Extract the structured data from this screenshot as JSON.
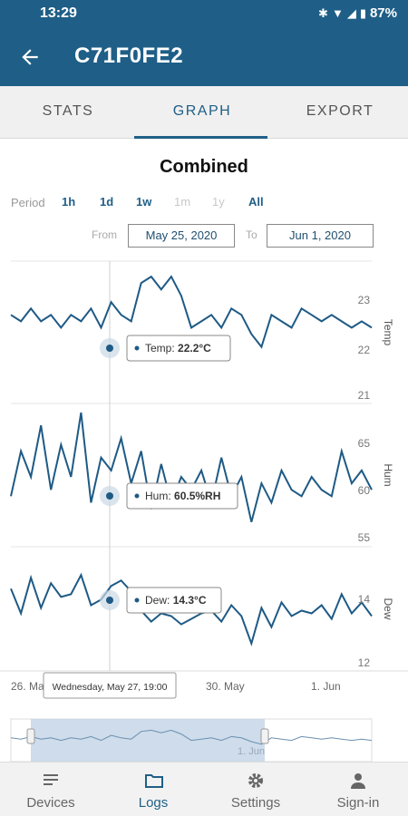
{
  "status_bar": {
    "time": "13:29",
    "battery": "87%"
  },
  "app_bar": {
    "title": "C71F0FE2",
    "back_icon": "arrow-left-icon"
  },
  "tabs": [
    {
      "label": "STATS",
      "active": false
    },
    {
      "label": "GRAPH",
      "active": true
    },
    {
      "label": "EXPORT",
      "active": false
    }
  ],
  "chart_title": "Combined",
  "period": {
    "label": "Period",
    "options": [
      {
        "label": "1h",
        "enabled": true
      },
      {
        "label": "1d",
        "enabled": true
      },
      {
        "label": "1w",
        "enabled": true
      },
      {
        "label": "1m",
        "enabled": false
      },
      {
        "label": "1y",
        "enabled": false
      },
      {
        "label": "All",
        "enabled": true
      }
    ]
  },
  "range": {
    "from_label": "From",
    "from": "May 25, 2020",
    "to_label": "To",
    "to": "Jun 1, 2020"
  },
  "colors": {
    "accent": "#1f5f87",
    "line": "#1e5a85"
  },
  "chart_data": {
    "type": "line",
    "x_ticks": [
      "26. May",
      "30. May",
      "1. Jun"
    ],
    "tooltip_time": "Wednesday, May 27, 19:00",
    "panels": [
      {
        "axis_title": "Temp",
        "ticks": [
          "23",
          "22",
          "21"
        ],
        "ylim": [
          21,
          23
        ],
        "tooltip": {
          "label": "Temp:",
          "value": "22.2°C"
        },
        "x": [
          0,
          0.2,
          0.4,
          0.6,
          0.8,
          1.0,
          1.2,
          1.4,
          1.6,
          1.8,
          2.0,
          2.2,
          2.4,
          2.6,
          2.8,
          3.0,
          3.2,
          3.4,
          3.6,
          3.8,
          4.0,
          4.2,
          4.4,
          4.6,
          4.8,
          5.0,
          5.2,
          5.4,
          5.6,
          5.8,
          6.0,
          6.2,
          6.4,
          6.6,
          6.8,
          7.0,
          7.2
        ],
        "y": [
          22.3,
          22.2,
          22.4,
          22.2,
          22.3,
          22.1,
          22.3,
          22.2,
          22.4,
          22.1,
          22.5,
          22.3,
          22.2,
          22.8,
          22.9,
          22.7,
          22.9,
          22.6,
          22.1,
          22.2,
          22.3,
          22.1,
          22.4,
          22.3,
          22.0,
          21.8,
          22.3,
          22.2,
          22.1,
          22.4,
          22.3,
          22.2,
          22.3,
          22.2,
          22.1,
          22.2,
          22.1
        ]
      },
      {
        "axis_title": "Hum",
        "ticks": [
          "65",
          "60",
          "55"
        ],
        "ylim": [
          55,
          65
        ],
        "tooltip": {
          "label": "Hum:",
          "value": "60.5%RH"
        },
        "x": [
          0,
          0.2,
          0.4,
          0.6,
          0.8,
          1.0,
          1.2,
          1.4,
          1.6,
          1.8,
          2.0,
          2.2,
          2.4,
          2.6,
          2.8,
          3.0,
          3.2,
          3.4,
          3.6,
          3.8,
          4.0,
          4.2,
          4.4,
          4.6,
          4.8,
          5.0,
          5.2,
          5.4,
          5.6,
          5.8,
          6.0,
          6.2,
          6.4,
          6.6,
          6.8,
          7.0,
          7.2
        ],
        "y": [
          58.5,
          62.0,
          60.0,
          64.0,
          59.0,
          62.5,
          60.0,
          65.0,
          58.0,
          61.5,
          60.5,
          63.0,
          59.5,
          62.0,
          57.5,
          61.0,
          58.0,
          60.0,
          59.0,
          60.5,
          58.0,
          61.5,
          58.5,
          60.0,
          56.5,
          59.5,
          58.0,
          60.5,
          59.0,
          58.5,
          60.0,
          59.0,
          58.5,
          62.0,
          59.5,
          60.5,
          59.0
        ]
      },
      {
        "axis_title": "Dew",
        "ticks": [
          "14",
          "12"
        ],
        "ylim": [
          12,
          16
        ],
        "tooltip": {
          "label": "Dew:",
          "value": "14.3°C"
        },
        "x": [
          0,
          0.2,
          0.4,
          0.6,
          0.8,
          1.0,
          1.2,
          1.4,
          1.6,
          1.8,
          2.0,
          2.2,
          2.4,
          2.6,
          2.8,
          3.0,
          3.2,
          3.4,
          3.6,
          3.8,
          4.0,
          4.2,
          4.4,
          4.6,
          4.8,
          5.0,
          5.2,
          5.4,
          5.6,
          5.8,
          6.0,
          6.2,
          6.4,
          6.6,
          6.8,
          7.0,
          7.2
        ],
        "y": [
          14.8,
          13.9,
          15.2,
          14.1,
          15.0,
          14.5,
          14.6,
          15.3,
          14.2,
          14.4,
          14.9,
          15.1,
          14.7,
          14.0,
          13.6,
          13.9,
          13.8,
          13.5,
          13.7,
          13.9,
          14.0,
          13.6,
          14.2,
          13.8,
          12.8,
          14.1,
          13.4,
          14.3,
          13.8,
          14.0,
          13.9,
          14.2,
          13.7,
          14.6,
          13.9,
          14.3,
          13.8
        ]
      }
    ]
  },
  "navigator": {
    "label": "1. Jun"
  },
  "bottom_nav": [
    {
      "label": "Devices",
      "icon": "list-icon",
      "active": false
    },
    {
      "label": "Logs",
      "icon": "folder-icon",
      "active": true
    },
    {
      "label": "Settings",
      "icon": "gear-icon",
      "active": false
    },
    {
      "label": "Sign-in",
      "icon": "person-icon",
      "active": false
    }
  ]
}
